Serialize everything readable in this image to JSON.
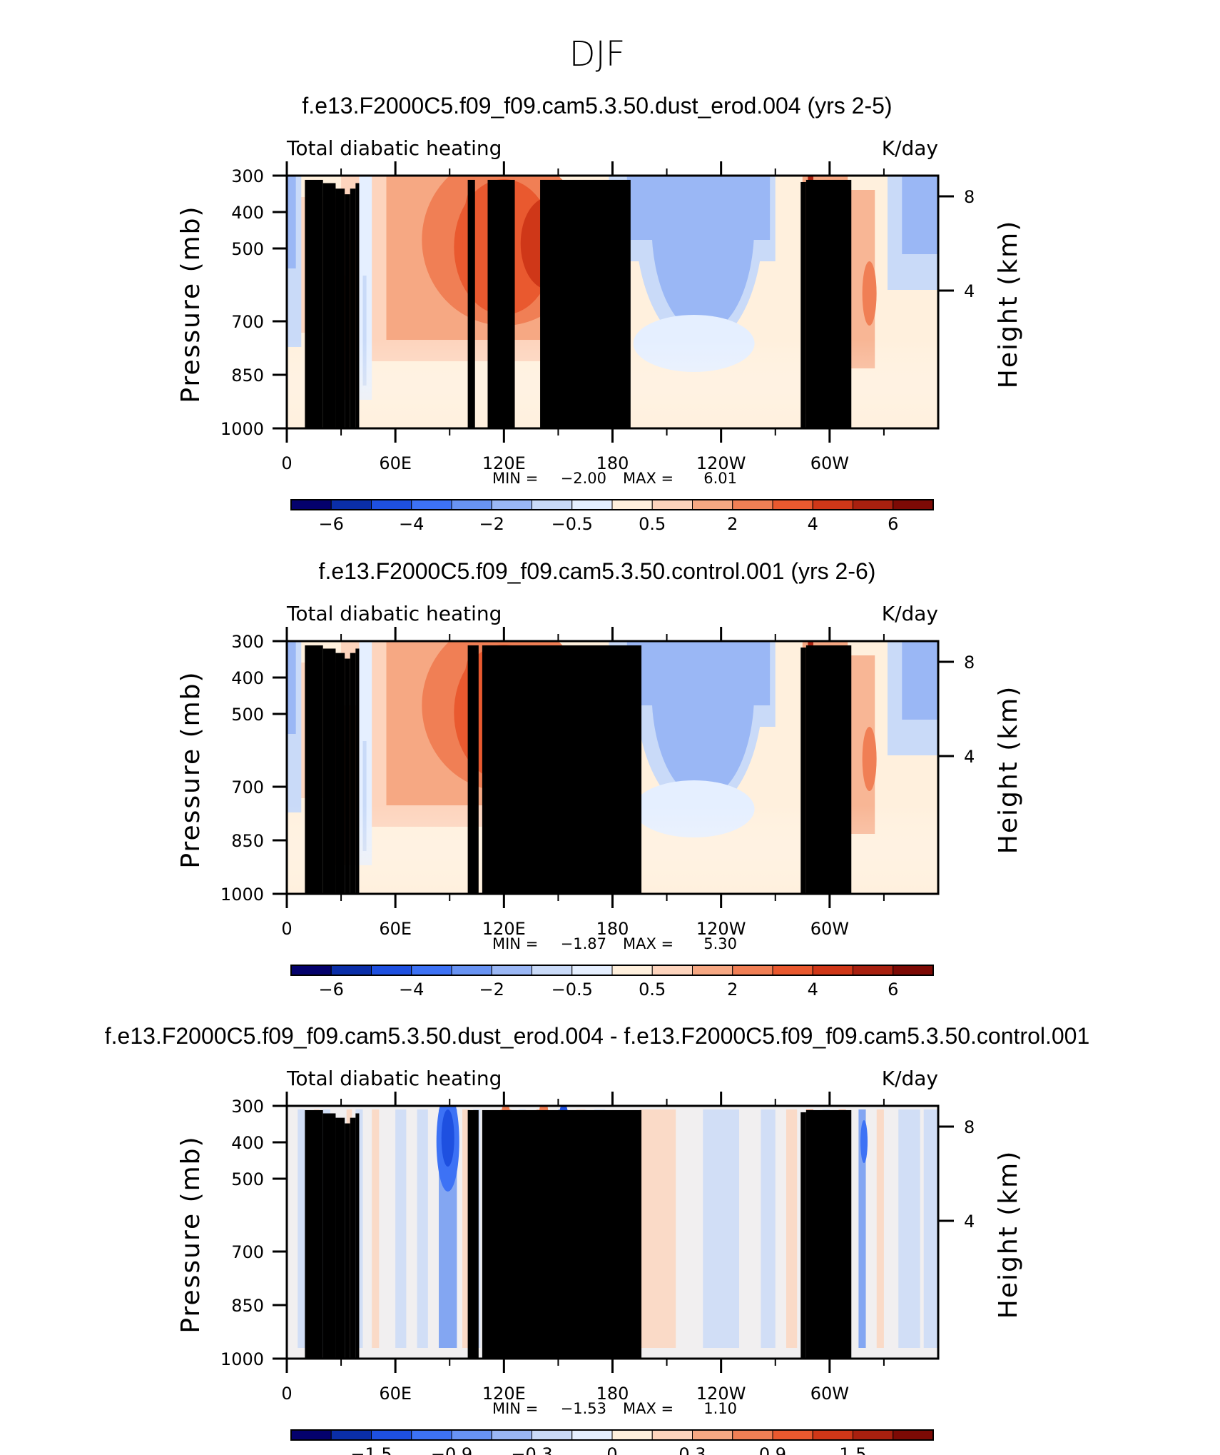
{
  "figure_title": "DJF",
  "chart_data": [
    {
      "type": "heatmap",
      "title": "f.e13.F2000C5.f09_f09.cam5.3.50.dust_erod.004 (yrs 2-5)",
      "left_label": "Total diabatic heating",
      "right_label": "K/day",
      "ylabel": "Pressure (mb)",
      "ylabel2": "Height (km)",
      "ylim": [
        1000,
        300
      ],
      "y_ticks": [
        "300",
        "400",
        "500",
        "500",
        "700",
        "850",
        "1000"
      ],
      "x_ticks": [
        "0",
        "60E",
        "120E",
        "180",
        "120W",
        "60W"
      ],
      "height_ticks": [
        "8",
        "4"
      ],
      "min_label": "MIN =",
      "min_value": "−2.00",
      "max_label": "MAX =",
      "max_value": "6.01",
      "colorbar_ticks": [
        "−6",
        "−4",
        "−2",
        "−0.5",
        "0.5",
        "2",
        "4",
        "6"
      ],
      "variant": "full"
    },
    {
      "type": "heatmap",
      "title": "f.e13.F2000C5.f09_f09.cam5.3.50.control.001 (yrs 2-6)",
      "left_label": "Total diabatic heating",
      "right_label": "K/day",
      "ylabel": "Pressure (mb)",
      "ylabel2": "Height (km)",
      "ylim": [
        1000,
        300
      ],
      "y_ticks": [
        "300",
        "400",
        "500",
        "500",
        "700",
        "850",
        "1000"
      ],
      "x_ticks": [
        "0",
        "60E",
        "120E",
        "180",
        "120W",
        "60W"
      ],
      "height_ticks": [
        "8",
        "4"
      ],
      "min_label": "MIN =",
      "min_value": "−1.87",
      "max_label": "MAX =",
      "max_value": "5.30",
      "colorbar_ticks": [
        "−6",
        "−4",
        "−2",
        "−0.5",
        "0.5",
        "2",
        "4",
        "6"
      ],
      "variant": "full"
    },
    {
      "type": "heatmap",
      "title": "f.e13.F2000C5.f09_f09.cam5.3.50.dust_erod.004 - f.e13.F2000C5.f09_f09.cam5.3.50.control.001",
      "left_label": "Total diabatic heating",
      "right_label": "K/day",
      "ylabel": "Pressure (mb)",
      "ylabel2": "Height (km)",
      "ylim": [
        1000,
        300
      ],
      "y_ticks": [
        "300",
        "400",
        "500",
        "500",
        "700",
        "850",
        "1000"
      ],
      "x_ticks": [
        "0",
        "60E",
        "120E",
        "180",
        "120W",
        "60W"
      ],
      "height_ticks": [
        "8",
        "4"
      ],
      "min_label": "MIN =",
      "min_value": "−1.53",
      "max_label": "MAX =",
      "max_value": "1.10",
      "colorbar_ticks": [
        "−1.5",
        "−0.9",
        "−0.3",
        "0",
        "0.3",
        "0.9",
        "1.5"
      ],
      "variant": "diff"
    }
  ],
  "colorbar_colors": [
    "#04016c",
    "#0a2ea8",
    "#1e50e0",
    "#3d72f5",
    "#6893f3",
    "#9ab7f5",
    "#c9daf8",
    "#e5efff",
    "#fff0dd",
    "#fdd4bd",
    "#f6a883",
    "#f07f55",
    "#e9592f",
    "#cf3718",
    "#a8200f",
    "#7d0a05"
  ]
}
